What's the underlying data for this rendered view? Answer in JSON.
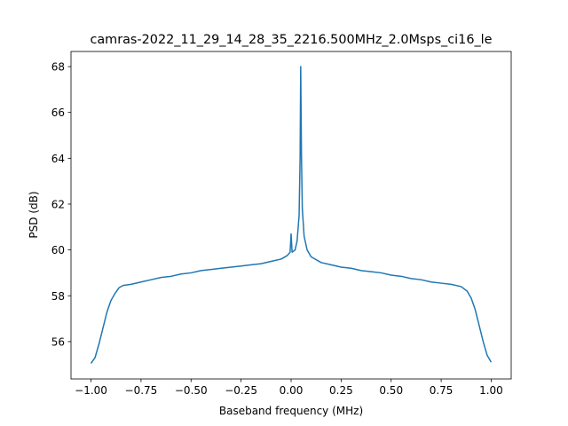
{
  "chart_data": {
    "type": "line",
    "title": "camras-2022_11_29_14_28_35_2216.500MHz_2.0Msps_ci16_le",
    "x_label": "Baseband frequency (MHz)",
    "y_label": "PSD (dB)",
    "x": [
      -1.0,
      -0.98,
      -0.96,
      -0.94,
      -0.92,
      -0.9,
      -0.88,
      -0.86,
      -0.84,
      -0.8,
      -0.75,
      -0.7,
      -0.65,
      -0.6,
      -0.55,
      -0.5,
      -0.45,
      -0.4,
      -0.35,
      -0.3,
      -0.25,
      -0.2,
      -0.15,
      -0.1,
      -0.05,
      -0.02,
      -0.005,
      0.0,
      0.005,
      0.02,
      0.03,
      0.04,
      0.045,
      0.048,
      0.052,
      0.056,
      0.065,
      0.08,
      0.1,
      0.15,
      0.2,
      0.25,
      0.3,
      0.35,
      0.4,
      0.45,
      0.5,
      0.55,
      0.6,
      0.65,
      0.7,
      0.75,
      0.8,
      0.85,
      0.88,
      0.9,
      0.92,
      0.94,
      0.96,
      0.98,
      1.0
    ],
    "series": [
      {
        "name": "PSD",
        "color": "#1f77b4",
        "values": [
          55.05,
          55.3,
          55.9,
          56.6,
          57.3,
          57.8,
          58.1,
          58.35,
          58.45,
          58.5,
          58.6,
          58.7,
          58.8,
          58.85,
          58.95,
          59.0,
          59.1,
          59.15,
          59.2,
          59.25,
          59.3,
          59.35,
          59.4,
          59.5,
          59.6,
          59.75,
          59.9,
          60.7,
          59.9,
          60.0,
          60.4,
          61.5,
          64.0,
          68.0,
          64.0,
          61.8,
          60.6,
          60.0,
          59.7,
          59.45,
          59.35,
          59.25,
          59.2,
          59.1,
          59.05,
          59.0,
          58.9,
          58.85,
          58.75,
          58.7,
          58.6,
          58.55,
          58.5,
          58.4,
          58.2,
          57.9,
          57.4,
          56.7,
          56.0,
          55.4,
          55.1
        ]
      }
    ],
    "xlim": [
      -1.1,
      1.1
    ],
    "ylim": [
      54.37,
      68.66
    ],
    "xticks": [
      {
        "value": -1.0,
        "label": "−1.00"
      },
      {
        "value": -0.75,
        "label": "−0.75"
      },
      {
        "value": -0.5,
        "label": "−0.50"
      },
      {
        "value": -0.25,
        "label": "−0.25"
      },
      {
        "value": 0,
        "label": "0.00"
      },
      {
        "value": 0.25,
        "label": "0.25"
      },
      {
        "value": 0.5,
        "label": "0.50"
      },
      {
        "value": 0.75,
        "label": "0.75"
      },
      {
        "value": 1.0,
        "label": "1.00"
      }
    ],
    "yticks": [
      56,
      58,
      60,
      62,
      64,
      66,
      68
    ]
  }
}
